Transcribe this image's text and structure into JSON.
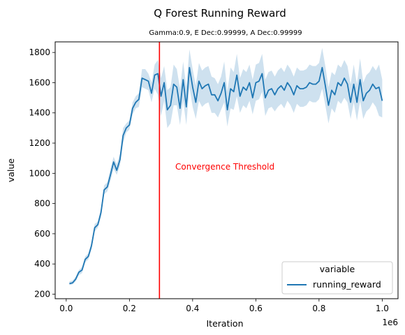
{
  "chart_data": {
    "type": "line",
    "title": "Q Forest Running Reward",
    "subtitle": "Gamma:0.9, E Dec:0.99999, A Dec:0.99999",
    "xlabel": "Iteration",
    "ylabel": "value",
    "x_offset_label": "1e6",
    "xlim": [
      -0.035,
      1.05
    ],
    "ylim": [
      170,
      1870
    ],
    "x_ticks": [
      0.0,
      0.2,
      0.4,
      0.6,
      0.8,
      1.0
    ],
    "x_tick_labels": [
      "0.0",
      "0.2",
      "0.4",
      "0.6",
      "0.8",
      "1.0"
    ],
    "y_ticks": [
      200,
      400,
      600,
      800,
      1000,
      1200,
      1400,
      1600,
      1800
    ],
    "y_tick_labels": [
      "200",
      "400",
      "600",
      "800",
      "1000",
      "1200",
      "1400",
      "1600",
      "1800"
    ],
    "grid": false,
    "legend": {
      "title": "variable",
      "placement": "lower-right"
    },
    "series": [
      {
        "name": "running_reward",
        "color": "#1f77b4",
        "band_color": "#1f77b4",
        "x": [
          0.01,
          0.02,
          0.03,
          0.04,
          0.05,
          0.06,
          0.07,
          0.08,
          0.09,
          0.1,
          0.11,
          0.12,
          0.13,
          0.14,
          0.15,
          0.16,
          0.17,
          0.18,
          0.19,
          0.2,
          0.21,
          0.22,
          0.23,
          0.24,
          0.25,
          0.26,
          0.27,
          0.28,
          0.29,
          0.3,
          0.31,
          0.32,
          0.33,
          0.34,
          0.35,
          0.36,
          0.37,
          0.38,
          0.39,
          0.4,
          0.41,
          0.42,
          0.43,
          0.44,
          0.45,
          0.46,
          0.47,
          0.48,
          0.49,
          0.5,
          0.51,
          0.52,
          0.53,
          0.54,
          0.55,
          0.56,
          0.57,
          0.58,
          0.59,
          0.6,
          0.61,
          0.62,
          0.63,
          0.64,
          0.65,
          0.66,
          0.67,
          0.68,
          0.69,
          0.7,
          0.71,
          0.72,
          0.73,
          0.74,
          0.75,
          0.76,
          0.77,
          0.78,
          0.79,
          0.8,
          0.81,
          0.82,
          0.83,
          0.84,
          0.85,
          0.86,
          0.87,
          0.88,
          0.89,
          0.9,
          0.91,
          0.92,
          0.93,
          0.94,
          0.95,
          0.96,
          0.97,
          0.98,
          0.99,
          1.0
        ],
        "y": [
          270,
          275,
          300,
          345,
          360,
          430,
          450,
          520,
          640,
          660,
          740,
          890,
          910,
          990,
          1075,
          1020,
          1090,
          1250,
          1300,
          1320,
          1430,
          1470,
          1490,
          1630,
          1620,
          1610,
          1530,
          1650,
          1660,
          1510,
          1600,
          1420,
          1450,
          1590,
          1570,
          1430,
          1620,
          1440,
          1700,
          1570,
          1470,
          1610,
          1560,
          1580,
          1590,
          1520,
          1520,
          1480,
          1530,
          1600,
          1420,
          1560,
          1540,
          1650,
          1510,
          1570,
          1550,
          1600,
          1500,
          1600,
          1610,
          1660,
          1500,
          1550,
          1560,
          1520,
          1560,
          1580,
          1550,
          1600,
          1570,
          1520,
          1580,
          1560,
          1560,
          1570,
          1600,
          1590,
          1590,
          1610,
          1700,
          1580,
          1450,
          1550,
          1520,
          1600,
          1580,
          1630,
          1590,
          1470,
          1590,
          1470,
          1620,
          1480,
          1530,
          1550,
          1590,
          1560,
          1570,
          1480
        ],
        "lower": [
          260,
          265,
          285,
          325,
          340,
          410,
          430,
          495,
          615,
          640,
          710,
          860,
          880,
          950,
          1030,
          990,
          1050,
          1200,
          1270,
          1290,
          1390,
          1430,
          1440,
          1570,
          1560,
          1550,
          1470,
          1560,
          1520,
          1380,
          1480,
          1300,
          1330,
          1450,
          1450,
          1320,
          1480,
          1320,
          1570,
          1440,
          1360,
          1480,
          1440,
          1460,
          1470,
          1400,
          1400,
          1370,
          1420,
          1470,
          1310,
          1430,
          1420,
          1510,
          1400,
          1450,
          1430,
          1480,
          1390,
          1480,
          1490,
          1540,
          1380,
          1430,
          1440,
          1410,
          1440,
          1460,
          1430,
          1480,
          1450,
          1400,
          1460,
          1440,
          1440,
          1450,
          1480,
          1470,
          1470,
          1490,
          1560,
          1450,
          1330,
          1430,
          1400,
          1480,
          1460,
          1500,
          1470,
          1360,
          1470,
          1350,
          1480,
          1360,
          1410,
          1430,
          1470,
          1440,
          1380,
          1370
        ],
        "upper": [
          285,
          290,
          315,
          360,
          380,
          450,
          470,
          545,
          665,
          680,
          770,
          920,
          940,
          1030,
          1110,
          1060,
          1130,
          1300,
          1330,
          1350,
          1470,
          1510,
          1530,
          1690,
          1690,
          1660,
          1600,
          1720,
          1750,
          1630,
          1710,
          1550,
          1570,
          1720,
          1690,
          1560,
          1740,
          1570,
          1820,
          1690,
          1580,
          1730,
          1680,
          1700,
          1710,
          1640,
          1630,
          1590,
          1640,
          1740,
          1540,
          1700,
          1670,
          1790,
          1630,
          1690,
          1670,
          1720,
          1620,
          1720,
          1730,
          1790,
          1620,
          1670,
          1680,
          1640,
          1680,
          1700,
          1670,
          1720,
          1690,
          1640,
          1700,
          1680,
          1680,
          1690,
          1720,
          1710,
          1710,
          1730,
          1830,
          1710,
          1570,
          1670,
          1650,
          1720,
          1700,
          1750,
          1710,
          1590,
          1720,
          1590,
          1760,
          1600,
          1650,
          1670,
          1710,
          1680,
          1720,
          1620
        ]
      }
    ],
    "annotation": {
      "text": "Convergence Threshold",
      "color": "#ff0000"
    },
    "threshold": {
      "x": 0.295,
      "color": "#ff0000"
    }
  }
}
